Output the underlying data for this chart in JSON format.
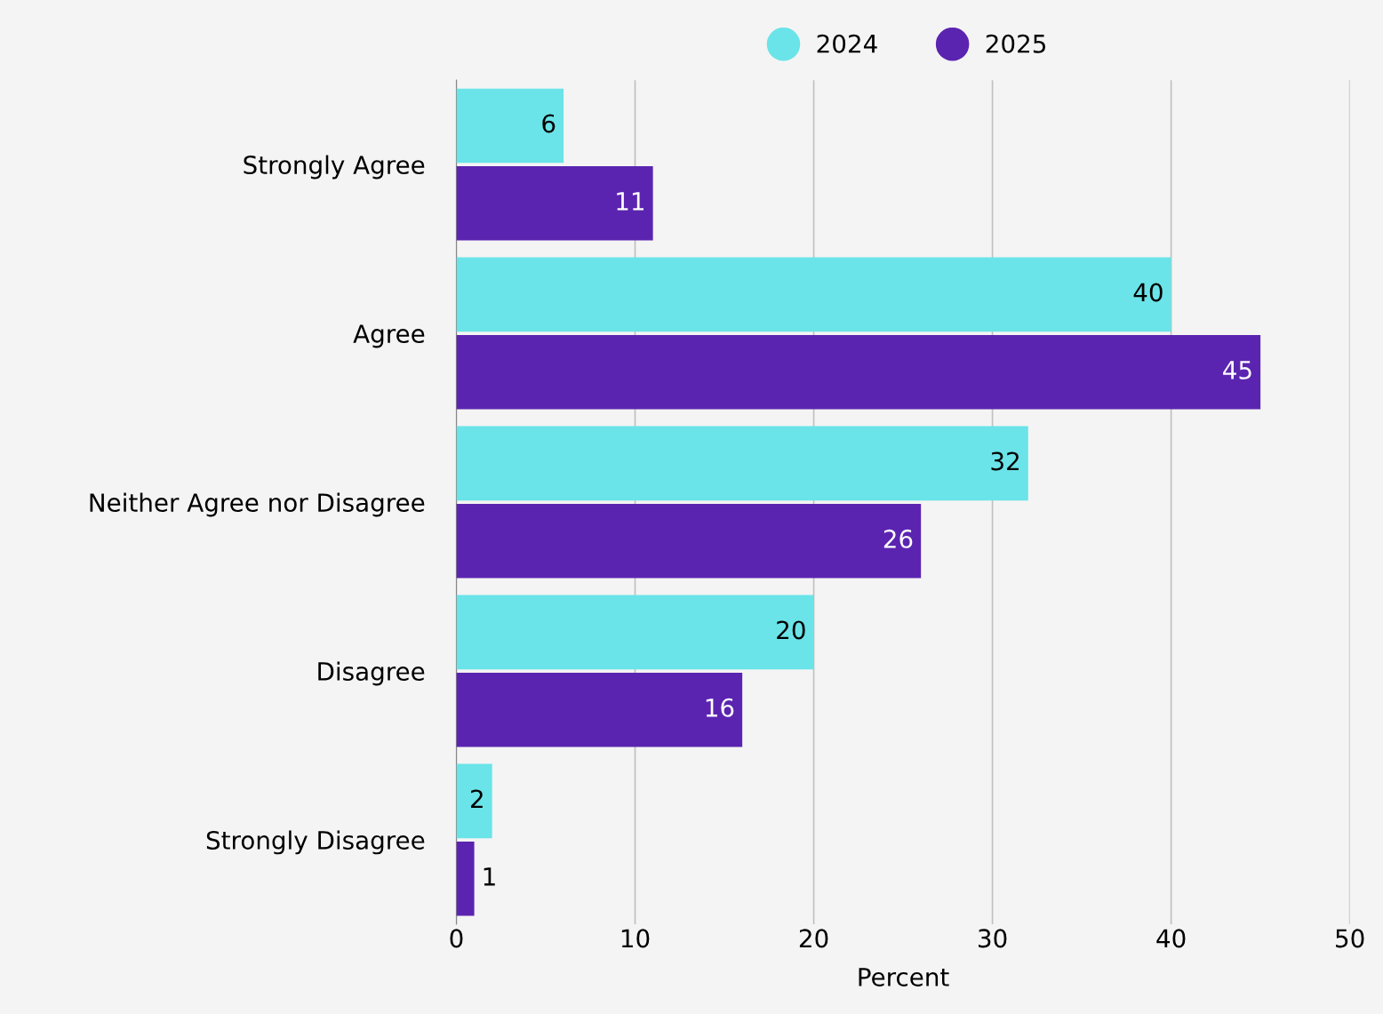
{
  "chart_data": {
    "type": "bar",
    "orientation": "horizontal",
    "xlabel": "Percent",
    "categories": [
      "Strongly Agree",
      "Agree",
      "Neither Agree nor Disagree",
      "Disagree",
      "Strongly Disagree"
    ],
    "series": [
      {
        "name": "2024",
        "color": "#6ae4e8",
        "values": [
          6,
          40,
          32,
          20,
          2
        ]
      },
      {
        "name": "2025",
        "color": "#5b24b0",
        "values": [
          11,
          45,
          26,
          16,
          1
        ]
      }
    ],
    "xlim": [
      0,
      50
    ],
    "xticks": [
      0,
      10,
      20,
      30,
      40,
      50
    ],
    "grid": "x",
    "legend": "top",
    "data_labels": true
  }
}
